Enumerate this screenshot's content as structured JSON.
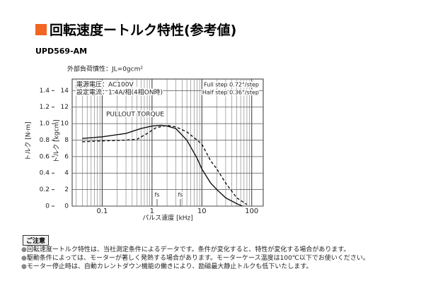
{
  "chart_data": {
    "type": "line",
    "title": "回転速度ートルク特性(参考値)",
    "subtitle": "UPD569-AM",
    "xlabel": "パルス速度 [kHz]",
    "ylabel": "トルク [kgcm]",
    "y2label": "トルク [N·m]",
    "xscale": "log",
    "xlim": [
      0.025,
      170
    ],
    "xticks": [
      0.1,
      1,
      10,
      100
    ],
    "xgrid": [
      0.03,
      0.04,
      0.05,
      0.06,
      0.07,
      0.08,
      0.09,
      0.2,
      0.3,
      0.4,
      0.5,
      0.6,
      0.7,
      0.8,
      0.9,
      2,
      3,
      4,
      5,
      6,
      7,
      8,
      9,
      20,
      30,
      40,
      50,
      60,
      70,
      80,
      90
    ],
    "ylim": [
      0,
      15.4
    ],
    "yticks": [
      0,
      2,
      4,
      6,
      8,
      10,
      12,
      14
    ],
    "y2lim": [
      0,
      1.54
    ],
    "y2ticks": [
      0,
      0.2,
      0.4,
      0.6,
      0.8,
      {
        "value": 1,
        "label": "1.0"
      },
      1.2,
      1.4
    ],
    "grid": true,
    "annotations": [
      "外部負荷慣性：JL=0gcm²",
      "電源電圧：AC100V",
      "設定電流：1.4A/相(4相ON時)",
      "Full step 0.72°/step",
      "Half step 0.36°/step",
      "PULLOUT TORQUE",
      "fs",
      "fs"
    ],
    "series": [
      {
        "name": "Full step",
        "color": "#111",
        "dash": false,
        "x": [
          0.04,
          0.1,
          0.3,
          0.6,
          1,
          1.5,
          2,
          3,
          5,
          8,
          10,
          15,
          20,
          30,
          50,
          65
        ],
        "values": [
          8.2,
          8.4,
          8.8,
          9.4,
          9.7,
          9.8,
          9.7,
          9.4,
          8.0,
          5.8,
          4.5,
          2.8,
          2.0,
          1.0,
          0.3,
          0
        ]
      },
      {
        "name": "Half step",
        "color": "#111",
        "dash": true,
        "x": [
          0.04,
          0.1,
          0.3,
          0.5,
          0.8,
          1.2,
          2,
          3,
          5,
          8,
          10,
          15,
          20,
          30,
          50,
          80
        ],
        "values": [
          7.8,
          7.9,
          8.0,
          8.1,
          8.8,
          9.5,
          9.8,
          9.6,
          9.0,
          8.0,
          7.5,
          5.5,
          4.5,
          2.8,
          1.0,
          0.2
        ]
      }
    ]
  },
  "notes_title": "ご注意",
  "notes": [
    "回転速度ートルク特性は、当社測定条件によるデータです。条件が変化すると、特性が変化する場合があります。",
    "駆動条件によっては、モーターが著しく発熱する場合があります。モーターケース温度は100℃以下でお使いください。",
    "モーター停止時は、自動カレントダウン機能の働きにより、励磁最大静止トルクも低下いたします。"
  ]
}
